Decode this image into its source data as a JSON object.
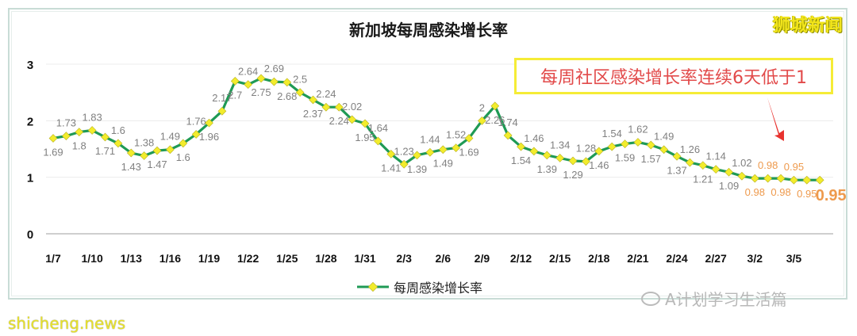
{
  "header": {
    "title": "新加坡每周感染增长率",
    "brand": "狮城新闻"
  },
  "callout": {
    "text": "每周社区感染增长率连续6天低于1"
  },
  "legend": {
    "label": "每周感染增长率"
  },
  "footer": {
    "source": "shicheng.news",
    "watermark": "A计划学习生活篇"
  },
  "colors": {
    "line": "#1f9a55",
    "marker": "#f2ec2c",
    "label_normal": "#808080",
    "label_highlight": "#ee9a4d",
    "callout_text": "#e24a4a",
    "callout_border": "#f5ec36",
    "arrow": "#e8332f"
  },
  "chart_data": {
    "type": "line",
    "title": "新加坡每周感染增长率",
    "xlabel": "",
    "ylabel": "",
    "ylim": [
      0,
      3
    ],
    "yticks": [
      0,
      1,
      2,
      3
    ],
    "grid": true,
    "legend_position": "bottom",
    "xtick_labels": [
      "1/7",
      "1/10",
      "1/13",
      "1/16",
      "1/19",
      "1/22",
      "1/25",
      "1/28",
      "1/31",
      "2/3",
      "2/6",
      "2/9",
      "2/12",
      "2/15",
      "2/18",
      "2/21",
      "2/24",
      "2/27",
      "3/2",
      "3/5"
    ],
    "x": [
      "1/7",
      "1/8",
      "1/9",
      "1/10",
      "1/11",
      "1/12",
      "1/13",
      "1/14",
      "1/15",
      "1/16",
      "1/17",
      "1/18",
      "1/19",
      "1/20",
      "1/21",
      "1/22",
      "1/23",
      "1/24",
      "1/25",
      "1/26",
      "1/27",
      "1/28",
      "1/29",
      "1/30",
      "1/31",
      "2/1",
      "2/2",
      "2/3",
      "2/4",
      "2/5",
      "2/6",
      "2/7",
      "2/8",
      "2/9",
      "2/10",
      "2/11",
      "2/12",
      "2/13",
      "2/14",
      "2/15",
      "2/16",
      "2/17",
      "2/18",
      "2/19",
      "2/20",
      "2/21",
      "2/22",
      "2/23",
      "2/24",
      "2/25",
      "2/26",
      "2/27",
      "2/28",
      "3/1",
      "3/2",
      "3/3",
      "3/4",
      "3/5",
      "3/6",
      "3/7"
    ],
    "series": [
      {
        "name": "每周感染增长率",
        "values": [
          1.69,
          1.73,
          1.8,
          1.83,
          1.71,
          1.6,
          1.43,
          1.38,
          1.47,
          1.49,
          1.6,
          1.76,
          1.96,
          2.17,
          2.7,
          2.64,
          2.75,
          2.69,
          2.68,
          2.5,
          2.37,
          2.24,
          2.24,
          2.02,
          1.95,
          1.64,
          1.41,
          1.23,
          1.39,
          1.44,
          1.49,
          1.52,
          1.69,
          2,
          2.26,
          1.74,
          1.54,
          1.46,
          1.39,
          1.34,
          1.29,
          1.28,
          1.46,
          1.54,
          1.59,
          1.62,
          1.57,
          1.49,
          1.37,
          1.26,
          1.21,
          1.14,
          1.09,
          1.02,
          0.98,
          0.98,
          0.98,
          0.95,
          0.95,
          0.95
        ]
      }
    ],
    "annotations": [
      "每周社区感染增长率连续6天低于1"
    ]
  }
}
